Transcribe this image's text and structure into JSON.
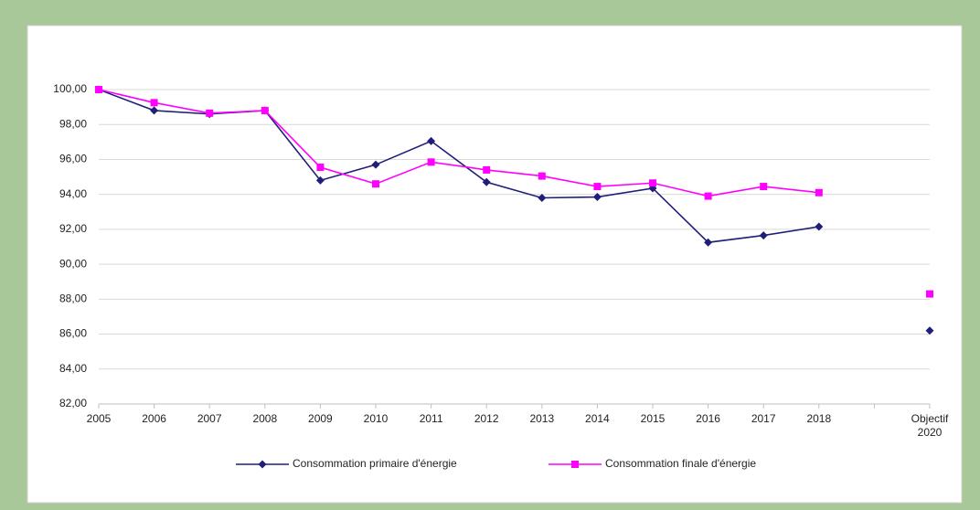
{
  "chart_data": {
    "type": "line",
    "categories": [
      "2005",
      "2006",
      "2007",
      "2008",
      "2009",
      "2010",
      "2011",
      "2012",
      "2013",
      "2014",
      "2015",
      "2016",
      "2017",
      "2018",
      null,
      "Objectif 2020"
    ],
    "series": [
      {
        "name": "Consommation primaire d'énergie",
        "color": "#1f1f7a",
        "marker": "diamond",
        "values": [
          100,
          98.8,
          98.6,
          98.8,
          94.8,
          95.7,
          97.05,
          94.7,
          93.8,
          93.85,
          94.35,
          91.25,
          91.65,
          92.15,
          null,
          86.2
        ]
      },
      {
        "name": "Consommation finale d'énergie",
        "color": "#ff00ff",
        "marker": "square",
        "values": [
          100,
          99.25,
          98.65,
          98.8,
          95.55,
          94.6,
          95.85,
          95.4,
          95.05,
          94.45,
          94.65,
          93.9,
          94.45,
          94.1,
          null,
          88.3
        ]
      }
    ],
    "ylim": [
      82,
      100
    ],
    "yticks": [
      {
        "value": 82,
        "label": "82,00"
      },
      {
        "value": 84,
        "label": "84,00"
      },
      {
        "value": 86,
        "label": "86,00"
      },
      {
        "value": 88,
        "label": "88,00"
      },
      {
        "value": 90,
        "label": "90,00"
      },
      {
        "value": 92,
        "label": "92,00"
      },
      {
        "value": 94,
        "label": "94,00"
      },
      {
        "value": 96,
        "label": "96,00"
      },
      {
        "value": 98,
        "label": "98,00"
      },
      {
        "value": 100,
        "label": "100,00"
      }
    ],
    "grid": true,
    "legend": "bottom"
  }
}
